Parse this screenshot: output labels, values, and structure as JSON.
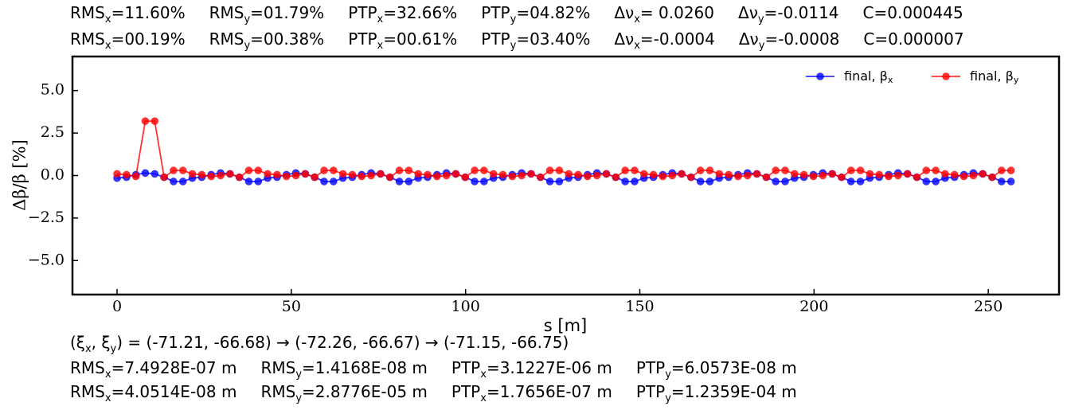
{
  "header": {
    "rows": [
      [
        [
          {
            "text": "RMS"
          },
          {
            "sub": "x"
          },
          {
            "text": "=11.60%"
          }
        ],
        [
          {
            "text": "RMS"
          },
          {
            "sub": "y"
          },
          {
            "text": "=01.79%"
          }
        ],
        [
          {
            "text": "PTP"
          },
          {
            "sub": "x"
          },
          {
            "text": "=32.66%"
          }
        ],
        [
          {
            "text": "PTP"
          },
          {
            "sub": "y"
          },
          {
            "text": "=04.82%"
          }
        ],
        [
          {
            "text": "Δν"
          },
          {
            "sub": "x"
          },
          {
            "text": "= 0.0260"
          }
        ],
        [
          {
            "text": "Δν"
          },
          {
            "sub": "y"
          },
          {
            "text": "=-0.0114"
          }
        ],
        [
          {
            "text": "C=0.000445"
          }
        ]
      ],
      [
        [
          {
            "text": "RMS"
          },
          {
            "sub": "x"
          },
          {
            "text": "=00.19%"
          }
        ],
        [
          {
            "text": "RMS"
          },
          {
            "sub": "y"
          },
          {
            "text": "=00.38%"
          }
        ],
        [
          {
            "text": "PTP"
          },
          {
            "sub": "x"
          },
          {
            "text": "=00.61%"
          }
        ],
        [
          {
            "text": "PTP"
          },
          {
            "sub": "y"
          },
          {
            "text": "=03.40%"
          }
        ],
        [
          {
            "text": "Δν"
          },
          {
            "sub": "x"
          },
          {
            "text": "=-0.0004"
          }
        ],
        [
          {
            "text": "Δν"
          },
          {
            "sub": "y"
          },
          {
            "text": "=-0.0008"
          }
        ],
        [
          {
            "text": "C=0.000007"
          }
        ]
      ]
    ]
  },
  "chart_data": {
    "type": "line",
    "x_label": "s [m]",
    "y_label": "Δβ/β [%]",
    "xlim": [
      -12.8,
      270.3
    ],
    "ylim": [
      -7,
      7
    ],
    "xticks": [
      0,
      50,
      100,
      150,
      200,
      250
    ],
    "yticks": [
      {
        "value": -5,
        "label": "−5.0"
      },
      {
        "value": -2.5,
        "label": "−2.5"
      },
      {
        "value": 0,
        "label": "0.0"
      },
      {
        "value": 2.5,
        "label": "2.5"
      },
      {
        "value": 5,
        "label": "5.0"
      }
    ],
    "grid": false,
    "legend": "upper right",
    "x": [
      0,
      2.7,
      5.4,
      8.1,
      10.8,
      13.5,
      16.2,
      18.9,
      21.6,
      24.3,
      27,
      29.7,
      32.4,
      35.1,
      37.8,
      40.5,
      43.2,
      45.9,
      48.6,
      51.3,
      54,
      56.7,
      59.4,
      62.1,
      64.8,
      67.5,
      70.2,
      72.9,
      75.6,
      78.3,
      81,
      83.7,
      86.4,
      89.1,
      91.8,
      94.5,
      97.2,
      99.9,
      102.6,
      105.3,
      108,
      110.7,
      113.4,
      116.1,
      118.8,
      121.5,
      124.2,
      126.9,
      129.6,
      132.3,
      135,
      137.7,
      140.4,
      143.1,
      145.8,
      148.5,
      151.2,
      153.9,
      156.6,
      159.3,
      162,
      164.7,
      167.4,
      170.1,
      172.8,
      175.5,
      178.2,
      180.9,
      183.6,
      186.3,
      189,
      191.7,
      194.4,
      197.1,
      199.8,
      202.5,
      205.2,
      207.9,
      210.6,
      213.3,
      216,
      218.7,
      221.4,
      224.1,
      226.8,
      229.5,
      232.2,
      234.9,
      237.6,
      240.3,
      243,
      245.7,
      248.4,
      251.1,
      253.8,
      256.5
    ],
    "series": [
      {
        "name": "final, β",
        "name_sub": "x",
        "color": "#0000ff",
        "values": [
          -0.15,
          -0.1,
          0.05,
          0.15,
          0.1,
          -0.1,
          -0.35,
          -0.35,
          -0.15,
          -0.1,
          0.05,
          0.15,
          0.1,
          -0.1,
          -0.35,
          -0.35,
          -0.15,
          -0.1,
          0.05,
          0.15,
          0.1,
          -0.1,
          -0.35,
          -0.35,
          -0.15,
          -0.1,
          0.05,
          0.15,
          0.1,
          -0.1,
          -0.35,
          -0.35,
          -0.15,
          -0.1,
          0.05,
          0.15,
          0.1,
          -0.1,
          -0.35,
          -0.35,
          -0.15,
          -0.1,
          0.05,
          0.15,
          0.1,
          -0.1,
          -0.35,
          -0.35,
          -0.15,
          -0.1,
          0.05,
          0.15,
          0.1,
          -0.1,
          -0.35,
          -0.35,
          -0.15,
          -0.1,
          0.05,
          0.15,
          0.1,
          -0.1,
          -0.35,
          -0.35,
          -0.15,
          -0.1,
          0.05,
          0.15,
          0.1,
          -0.1,
          -0.35,
          -0.35,
          -0.15,
          -0.1,
          0.05,
          0.15,
          0.1,
          -0.1,
          -0.35,
          -0.35,
          -0.15,
          -0.1,
          0.05,
          0.15,
          0.1,
          -0.1,
          -0.35,
          -0.35,
          -0.15,
          -0.1,
          0.05,
          0.15,
          0.1,
          -0.1,
          -0.35,
          -0.35
        ]
      },
      {
        "name": "final, β",
        "name_sub": "y",
        "color": "#ff0000",
        "values": [
          0.1,
          0.05,
          -0.05,
          3.2,
          3.2,
          -0.1,
          0.3,
          0.3,
          0.1,
          0.05,
          -0.05,
          0.0,
          0.1,
          -0.1,
          0.3,
          0.3,
          0.1,
          0.05,
          -0.05,
          0.0,
          0.1,
          -0.1,
          0.3,
          0.3,
          0.1,
          0.05,
          -0.05,
          0.0,
          0.1,
          -0.1,
          0.3,
          0.3,
          0.1,
          0.05,
          -0.05,
          0.0,
          0.1,
          -0.1,
          0.3,
          0.3,
          0.1,
          0.05,
          -0.05,
          0.0,
          0.1,
          -0.1,
          0.3,
          0.3,
          0.1,
          0.05,
          -0.05,
          0.0,
          0.1,
          -0.1,
          0.3,
          0.3,
          0.1,
          0.05,
          -0.05,
          0.0,
          0.1,
          -0.1,
          0.3,
          0.3,
          0.1,
          0.05,
          -0.05,
          0.0,
          0.1,
          -0.1,
          0.3,
          0.3,
          0.1,
          0.05,
          -0.05,
          0.0,
          0.1,
          -0.1,
          0.3,
          0.3,
          0.1,
          0.05,
          -0.05,
          0.0,
          0.1,
          -0.1,
          0.3,
          0.3,
          0.1,
          0.05,
          -0.05,
          0.0,
          0.1,
          -0.1,
          0.3,
          0.3
        ]
      }
    ]
  },
  "footer": {
    "rows": [
      [
        [
          {
            "text": "(ξ"
          },
          {
            "sub": "x"
          },
          {
            "text": ", ξ"
          },
          {
            "sub": "y"
          },
          {
            "text": ") = (-71.21, -66.68) → (-72.26, -66.67) → (-71.15, -66.75)"
          }
        ]
      ],
      [
        [
          {
            "text": "RMS"
          },
          {
            "sub": "x"
          },
          {
            "text": "=7.4928E-07 m"
          }
        ],
        [
          {
            "text": "RMS"
          },
          {
            "sub": "y"
          },
          {
            "text": "=1.4168E-08 m"
          }
        ],
        [
          {
            "text": "PTP"
          },
          {
            "sub": "x"
          },
          {
            "text": "=3.1227E-06 m"
          }
        ],
        [
          {
            "text": "PTP"
          },
          {
            "sub": "y"
          },
          {
            "text": "=6.0573E-08 m"
          }
        ]
      ],
      [
        [
          {
            "text": "RMS"
          },
          {
            "sub": "x"
          },
          {
            "text": "=4.0514E-08 m"
          }
        ],
        [
          {
            "text": "RMS"
          },
          {
            "sub": "y"
          },
          {
            "text": "=2.8776E-05 m"
          }
        ],
        [
          {
            "text": "PTP"
          },
          {
            "sub": "x"
          },
          {
            "text": "=1.7656E-07 m"
          }
        ],
        [
          {
            "text": "PTP"
          },
          {
            "sub": "y"
          },
          {
            "text": "=1.2359E-04 m"
          }
        ]
      ]
    ]
  }
}
